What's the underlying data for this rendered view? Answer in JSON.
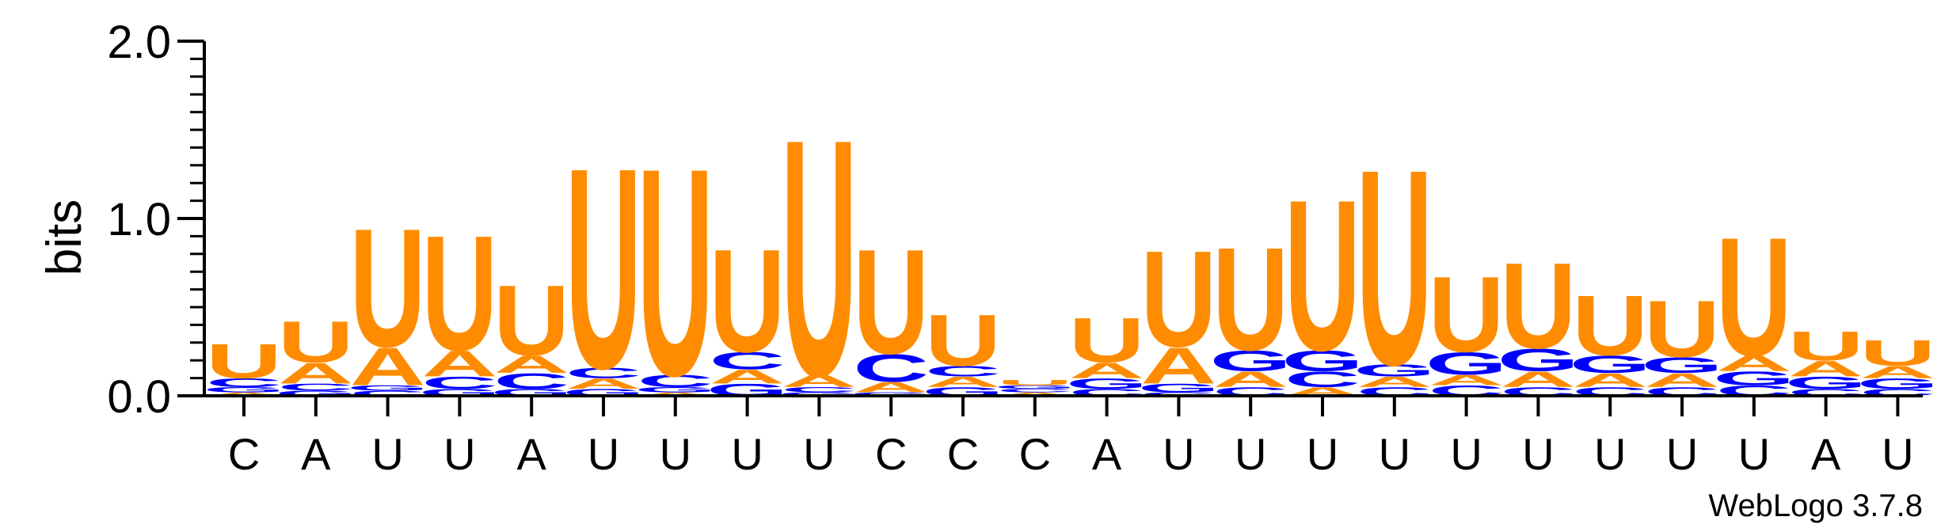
{
  "chart_data": {
    "type": "sequence-logo",
    "ylabel": "bits",
    "ylim": [
      0,
      2.0
    ],
    "yticks": [
      "0.0",
      "1.0",
      "2.0"
    ],
    "credit": "WebLogo 3.7.8",
    "colors": {
      "U": "#FF8C00",
      "A": "#FF8C00",
      "C": "#0000FF",
      "G": "#0000FF"
    },
    "positions": [
      {
        "label": "C",
        "stack": [
          {
            "base": "U",
            "h": 0.2
          },
          {
            "base": "A",
            "h": 0.02
          },
          {
            "base": "G",
            "h": 0.03
          },
          {
            "base": "C",
            "h": 0.05
          }
        ]
      },
      {
        "label": "A",
        "stack": [
          {
            "base": "U",
            "h": 0.24
          },
          {
            "base": "A",
            "h": 0.12
          },
          {
            "base": "G",
            "h": 0.03
          },
          {
            "base": "C",
            "h": 0.04
          }
        ]
      },
      {
        "label": "U",
        "stack": [
          {
            "base": "U",
            "h": 0.69
          },
          {
            "base": "A",
            "h": 0.22
          },
          {
            "base": "C",
            "h": 0.03
          },
          {
            "base": "G",
            "h": 0.03
          }
        ]
      },
      {
        "label": "U",
        "stack": [
          {
            "base": "U",
            "h": 0.67
          },
          {
            "base": "A",
            "h": 0.15
          },
          {
            "base": "G",
            "h": 0.04
          },
          {
            "base": "C",
            "h": 0.07
          }
        ]
      },
      {
        "label": "A",
        "stack": [
          {
            "base": "U",
            "h": 0.41
          },
          {
            "base": "A",
            "h": 0.1
          },
          {
            "base": "G",
            "h": 0.04
          },
          {
            "base": "C",
            "h": 0.09
          }
        ]
      },
      {
        "label": "U",
        "stack": [
          {
            "base": "U",
            "h": 1.17
          },
          {
            "base": "A",
            "h": 0.06
          },
          {
            "base": "G",
            "h": 0.04
          },
          {
            "base": "C",
            "h": 0.06
          }
        ]
      },
      {
        "label": "U",
        "stack": [
          {
            "base": "U",
            "h": 1.21
          },
          {
            "base": "C",
            "h": 0.07
          },
          {
            "base": "G",
            "h": 0.03
          },
          {
            "base": "A",
            "h": 0.02
          }
        ]
      },
      {
        "label": "U",
        "stack": [
          {
            "base": "U",
            "h": 0.6
          },
          {
            "base": "C",
            "h": 0.1
          },
          {
            "base": "A",
            "h": 0.08
          },
          {
            "base": "G",
            "h": 0.07
          }
        ]
      },
      {
        "label": "U",
        "stack": [
          {
            "base": "U",
            "h": 1.38
          },
          {
            "base": "A",
            "h": 0.07
          },
          {
            "base": "C",
            "h": 0.03
          },
          {
            "base": "G",
            "h": 0.02
          }
        ]
      },
      {
        "label": "C",
        "stack": [
          {
            "base": "U",
            "h": 0.61
          },
          {
            "base": "C",
            "h": 0.16
          },
          {
            "base": "A",
            "h": 0.06
          },
          {
            "base": "G",
            "h": 0.02
          }
        ]
      },
      {
        "label": "C",
        "stack": [
          {
            "base": "U",
            "h": 0.3
          },
          {
            "base": "A",
            "h": 0.06
          },
          {
            "base": "C",
            "h": 0.06
          },
          {
            "base": "G",
            "h": 0.05
          }
        ]
      },
      {
        "label": "C",
        "stack": [
          {
            "base": "U",
            "h": 0.03
          },
          {
            "base": "A",
            "h": 0.02
          },
          {
            "base": "C",
            "h": 0.02
          },
          {
            "base": "G",
            "h": 0.02
          }
        ]
      },
      {
        "label": "A",
        "stack": [
          {
            "base": "U",
            "h": 0.26
          },
          {
            "base": "A",
            "h": 0.09
          },
          {
            "base": "G",
            "h": 0.06
          },
          {
            "base": "C",
            "h": 0.04
          }
        ]
      },
      {
        "label": "U",
        "stack": [
          {
            "base": "U",
            "h": 0.56
          },
          {
            "base": "A",
            "h": 0.21
          },
          {
            "base": "G",
            "h": 0.05
          },
          {
            "base": "C",
            "h": 0.02
          }
        ]
      },
      {
        "label": "U",
        "stack": [
          {
            "base": "U",
            "h": 0.6
          },
          {
            "base": "G",
            "h": 0.12
          },
          {
            "base": "C",
            "h": 0.05
          },
          {
            "base": "A",
            "h": 0.09
          }
        ]
      },
      {
        "label": "U",
        "stack": [
          {
            "base": "U",
            "h": 0.88
          },
          {
            "base": "A",
            "h": 0.05
          },
          {
            "base": "C",
            "h": 0.09
          },
          {
            "base": "G",
            "h": 0.12
          }
        ]
      },
      {
        "label": "U",
        "stack": [
          {
            "base": "U",
            "h": 1.14
          },
          {
            "base": "A",
            "h": 0.06
          },
          {
            "base": "C",
            "h": 0.05
          },
          {
            "base": "G",
            "h": 0.07
          }
        ]
      },
      {
        "label": "U",
        "stack": [
          {
            "base": "U",
            "h": 0.44
          },
          {
            "base": "G",
            "h": 0.13
          },
          {
            "base": "C",
            "h": 0.06
          },
          {
            "base": "A",
            "h": 0.06
          }
        ]
      },
      {
        "label": "U",
        "stack": [
          {
            "base": "U",
            "h": 0.5
          },
          {
            "base": "A",
            "h": 0.09
          },
          {
            "base": "G",
            "h": 0.13
          },
          {
            "base": "C",
            "h": 0.05
          }
        ]
      },
      {
        "label": "U",
        "stack": [
          {
            "base": "U",
            "h": 0.35
          },
          {
            "base": "A",
            "h": 0.08
          },
          {
            "base": "G",
            "h": 0.1
          },
          {
            "base": "C",
            "h": 0.05
          }
        ]
      },
      {
        "label": "U",
        "stack": [
          {
            "base": "U",
            "h": 0.33
          },
          {
            "base": "A",
            "h": 0.08
          },
          {
            "base": "G",
            "h": 0.09
          },
          {
            "base": "C",
            "h": 0.05
          }
        ]
      },
      {
        "label": "U",
        "stack": [
          {
            "base": "U",
            "h": 0.69
          },
          {
            "base": "A",
            "h": 0.09
          },
          {
            "base": "G",
            "h": 0.08
          },
          {
            "base": "C",
            "h": 0.06
          }
        ]
      },
      {
        "label": "A",
        "stack": [
          {
            "base": "U",
            "h": 0.17
          },
          {
            "base": "A",
            "h": 0.09
          },
          {
            "base": "G",
            "h": 0.07
          },
          {
            "base": "C",
            "h": 0.04
          }
        ]
      },
      {
        "label": "U",
        "stack": [
          {
            "base": "U",
            "h": 0.15
          },
          {
            "base": "A",
            "h": 0.07
          },
          {
            "base": "G",
            "h": 0.06
          },
          {
            "base": "C",
            "h": 0.04
          }
        ]
      }
    ]
  }
}
